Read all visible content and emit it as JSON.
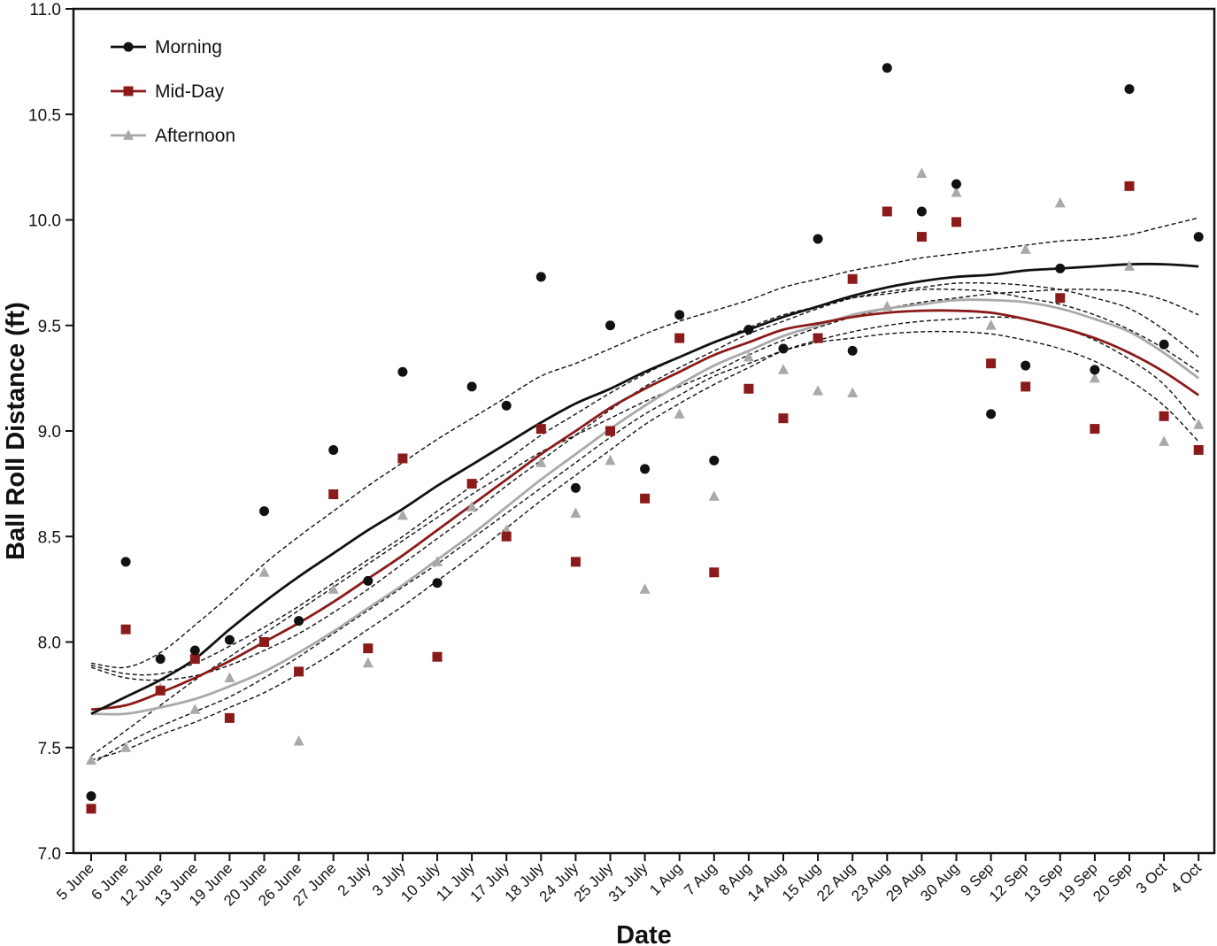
{
  "chart_data": {
    "type": "scatter",
    "xlabel": "Date",
    "ylabel": "Ball Roll Distance (ft)",
    "ylim": [
      7.0,
      11.0
    ],
    "yticks": [
      "7.0",
      "7.5",
      "8.0",
      "8.5",
      "9.0",
      "9.5",
      "10.0",
      "10.5",
      "11.0"
    ],
    "categories": [
      "5 June",
      "6 June",
      "12 June",
      "13 June",
      "19 June",
      "20 June",
      "26 June",
      "27 June",
      "2 July",
      "3 July",
      "10 July",
      "11 July",
      "17 July",
      "18 July",
      "24 July",
      "25 July",
      "31 July",
      "1 Aug",
      "7 Aug",
      "8 Aug",
      "14 Aug",
      "15 Aug",
      "22 Aug",
      "23 Aug",
      "29 Aug",
      "30 Aug",
      "9 Sep",
      "12 Sep",
      "13 Sep",
      "19 Sep",
      "20 Sep",
      "3 Oct",
      "4 Oct"
    ],
    "legend_position": "top-left",
    "grid": false,
    "series": [
      {
        "name": "Morning",
        "color": "#111111",
        "marker": "circle",
        "values": [
          7.27,
          8.38,
          7.92,
          7.96,
          8.01,
          8.62,
          8.1,
          8.91,
          8.29,
          9.28,
          8.28,
          9.21,
          9.12,
          9.73,
          8.73,
          9.5,
          8.82,
          9.55,
          8.86,
          9.48,
          9.39,
          9.91,
          9.38,
          10.72,
          10.04,
          10.17,
          9.08,
          9.31,
          9.77,
          9.29,
          10.62,
          9.41,
          9.92
        ],
        "fit": [
          7.66,
          7.74,
          7.82,
          7.92,
          8.06,
          8.19,
          8.31,
          8.42,
          8.53,
          8.63,
          8.74,
          8.84,
          8.94,
          9.04,
          9.13,
          9.2,
          9.28,
          9.35,
          9.42,
          9.48,
          9.54,
          9.59,
          9.64,
          9.68,
          9.71,
          9.73,
          9.74,
          9.76,
          9.77,
          9.78,
          9.79,
          9.79,
          9.78
        ],
        "ci": [
          [
            7.9,
            7.88,
            7.95,
            8.08,
            8.22,
            8.37,
            8.5,
            8.62,
            8.74,
            8.85,
            8.96,
            9.06,
            9.16,
            9.26,
            9.32,
            9.39,
            9.46,
            9.52,
            9.57,
            9.62,
            9.68,
            9.72,
            9.76,
            9.79,
            9.82,
            9.84,
            9.86,
            9.88,
            9.9,
            9.91,
            9.93,
            9.97,
            10.01
          ],
          [
            7.46,
            7.58,
            7.7,
            7.82,
            7.93,
            8.04,
            8.15,
            8.26,
            8.37,
            8.48,
            8.59,
            8.7,
            8.8,
            8.9,
            8.98,
            9.06,
            9.14,
            9.21,
            9.28,
            9.36,
            9.43,
            9.49,
            9.54,
            9.58,
            9.61,
            9.63,
            9.65,
            9.66,
            9.67,
            9.67,
            9.66,
            9.62,
            9.55
          ]
        ]
      },
      {
        "name": "Mid-Day",
        "color": "#8b1a1a",
        "marker": "square",
        "values": [
          7.21,
          8.06,
          7.77,
          7.92,
          7.64,
          8.0,
          7.86,
          8.7,
          7.97,
          8.87,
          7.93,
          8.75,
          8.5,
          9.01,
          8.38,
          9.0,
          8.68,
          9.44,
          8.33,
          9.2,
          9.06,
          9.44,
          9.72,
          10.04,
          9.92,
          9.99,
          9.32,
          9.21,
          9.63,
          9.01,
          10.16,
          9.07,
          8.91
        ],
        "fit": [
          7.68,
          7.7,
          7.76,
          7.83,
          7.91,
          8.0,
          8.09,
          8.19,
          8.3,
          8.41,
          8.53,
          8.65,
          8.77,
          8.89,
          9.0,
          9.11,
          9.2,
          9.28,
          9.36,
          9.42,
          9.48,
          9.51,
          9.54,
          9.56,
          9.57,
          9.57,
          9.56,
          9.53,
          9.49,
          9.44,
          9.37,
          9.28,
          9.17
        ],
        "ci": [
          [
            7.89,
            7.85,
            7.85,
            7.9,
            7.98,
            8.07,
            8.17,
            8.28,
            8.39,
            8.5,
            8.62,
            8.74,
            8.86,
            8.98,
            9.08,
            9.18,
            9.27,
            9.35,
            9.42,
            9.49,
            9.55,
            9.59,
            9.63,
            9.65,
            9.67,
            9.67,
            9.66,
            9.63,
            9.6,
            9.55,
            9.48,
            9.39,
            9.28
          ],
          [
            7.42,
            7.52,
            7.6,
            7.67,
            7.74,
            7.83,
            7.93,
            8.04,
            8.15,
            8.26,
            8.37,
            8.49,
            8.61,
            8.73,
            8.85,
            8.97,
            9.08,
            9.17,
            9.26,
            9.32,
            9.38,
            9.42,
            9.44,
            9.46,
            9.47,
            9.47,
            9.46,
            9.43,
            9.39,
            9.33,
            9.24,
            9.12,
            8.95
          ]
        ]
      },
      {
        "name": "Afternoon",
        "color": "#a9a9a9",
        "marker": "triangle",
        "values": [
          7.44,
          7.5,
          7.78,
          7.68,
          7.83,
          8.33,
          7.53,
          8.25,
          7.9,
          8.6,
          8.38,
          8.64,
          8.53,
          8.85,
          8.61,
          8.86,
          8.25,
          9.08,
          8.69,
          9.35,
          9.29,
          9.19,
          9.18,
          9.59,
          10.22,
          10.13,
          9.5,
          9.86,
          10.08,
          9.25,
          9.78,
          8.95,
          9.03
        ],
        "fit": [
          7.66,
          7.66,
          7.69,
          7.73,
          7.79,
          7.86,
          7.95,
          8.05,
          8.16,
          8.27,
          8.39,
          8.51,
          8.64,
          8.77,
          8.89,
          9.01,
          9.12,
          9.22,
          9.31,
          9.38,
          9.45,
          9.5,
          9.55,
          9.58,
          9.6,
          9.62,
          9.62,
          9.61,
          9.58,
          9.53,
          9.47,
          9.37,
          9.25
        ],
        "ci": [
          [
            7.88,
            7.83,
            7.82,
            7.84,
            7.89,
            7.96,
            8.04,
            8.14,
            8.25,
            8.37,
            8.49,
            8.61,
            8.74,
            8.86,
            8.98,
            9.1,
            9.21,
            9.3,
            9.38,
            9.46,
            9.52,
            9.58,
            9.63,
            9.66,
            9.68,
            9.7,
            9.7,
            9.69,
            9.67,
            9.63,
            9.58,
            9.48,
            9.35
          ],
          [
            7.44,
            7.49,
            7.56,
            7.62,
            7.69,
            7.76,
            7.85,
            7.95,
            8.06,
            8.17,
            8.29,
            8.41,
            8.54,
            8.67,
            8.79,
            8.91,
            9.03,
            9.13,
            9.22,
            9.3,
            9.38,
            9.43,
            9.47,
            9.5,
            9.52,
            9.53,
            9.54,
            9.53,
            9.49,
            9.43,
            9.34,
            9.22,
            9.03
          ]
        ]
      }
    ]
  }
}
